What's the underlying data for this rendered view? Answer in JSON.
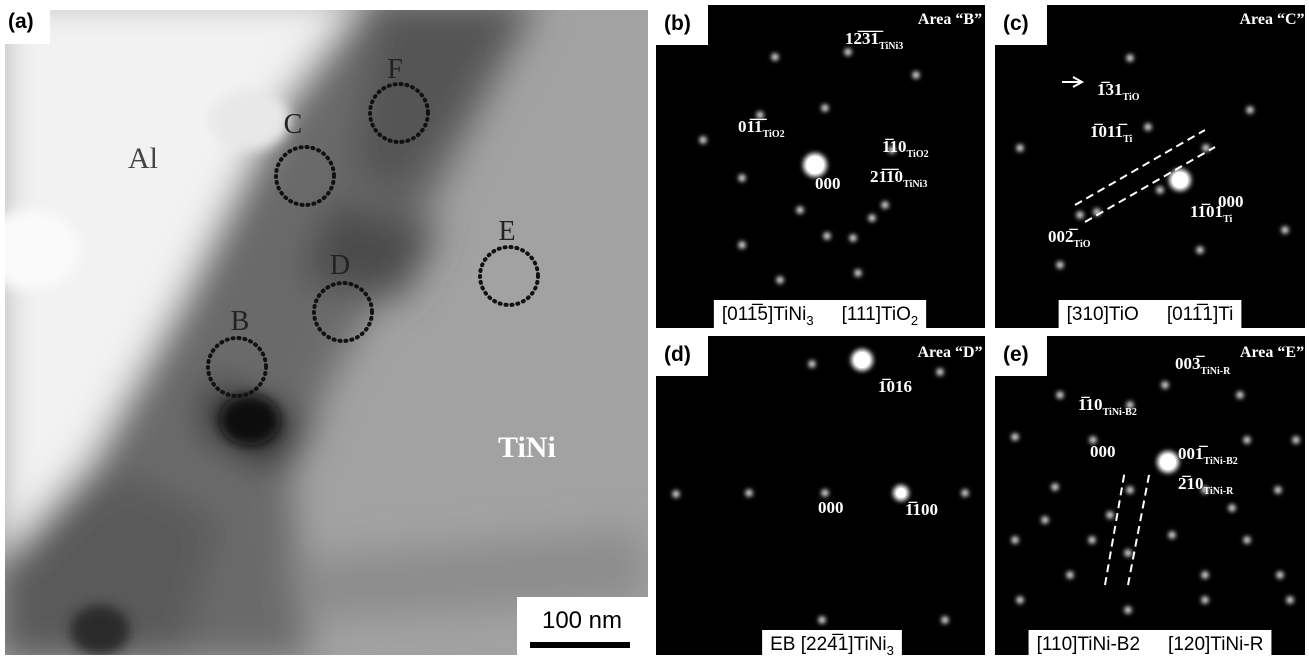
{
  "panels": [
    {
      "label": "(a)",
      "regions": [
        "Al",
        "TiNi"
      ],
      "markers": [
        "B",
        "C",
        "D",
        "E",
        "F"
      ],
      "scale_bar": "100 nm"
    },
    {
      "label": "(b)",
      "area": "Area “B”",
      "indices": [
        {
          "text": "12̅3̅1̅",
          "sub": "TiNi3"
        },
        {
          "text": "01̅1̅",
          "sub": "TiO2"
        },
        {
          "text": "1̅10",
          "sub": "TiO2"
        },
        {
          "text": "000"
        },
        {
          "text": "21̅1̅0",
          "sub": "TiNi3"
        }
      ],
      "caption": [
        {
          "text": "[011̅5]TiNi",
          "sub": "3"
        },
        {
          "text": "[111]TiO",
          "sub": "2"
        }
      ]
    },
    {
      "label": "(c)",
      "area": "Area “C”",
      "indices": [
        {
          "text": "1̅31",
          "sub": "TiO"
        },
        {
          "text": "1̅011̅",
          "sub": "Ti"
        },
        {
          "text": "000"
        },
        {
          "text": "11̅01",
          "sub": "Ti"
        },
        {
          "text": "002̅",
          "sub": "TiO"
        }
      ],
      "caption": [
        {
          "text": "[310]TiO"
        },
        {
          "text": "[011̅1]Ti"
        }
      ]
    },
    {
      "label": "(d)",
      "area": "Area “D”",
      "indices": [
        {
          "text": "1̅016"
        },
        {
          "text": "000"
        },
        {
          "text": "1̅100"
        }
      ],
      "caption": [
        {
          "text": "EB [224̅1]TiNi",
          "sub": "3"
        }
      ]
    },
    {
      "label": "(e)",
      "area": "Area “E”",
      "indices": [
        {
          "text": "003̅",
          "sub": "TiNi-R"
        },
        {
          "text": "1̅10",
          "sub": "TiNi-B2"
        },
        {
          "text": "000"
        },
        {
          "text": "001̅",
          "sub": "TiNi-B2"
        },
        {
          "text": "2̅10",
          "sub": "TiNi-R"
        }
      ],
      "caption": [
        {
          "text": "[110]TiNi-B2"
        },
        {
          "text": "[120]TiNi-R"
        }
      ]
    }
  ]
}
